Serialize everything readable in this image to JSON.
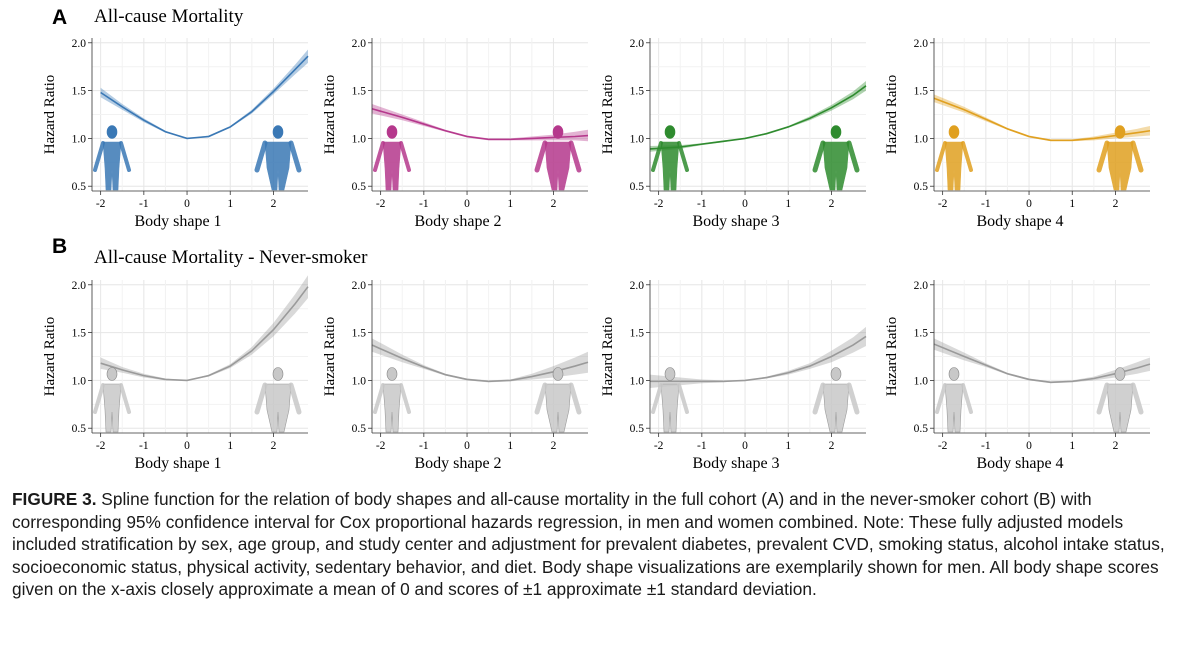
{
  "panels": [
    {
      "letter": "A",
      "title": "All-cause Mortality"
    },
    {
      "letter": "B",
      "title": "All-cause Mortality - Never-smoker"
    }
  ],
  "chart_data": [
    {
      "type": "line",
      "row": "A",
      "xlabel": "Body shape 1",
      "ylabel": "Hazard Ratio",
      "xlim": [
        -2.2,
        2.8
      ],
      "ylim": [
        0.45,
        2.05
      ],
      "x_ticks": [
        -2,
        -1,
        0,
        1,
        2
      ],
      "y_ticks": [
        0.5,
        1.0,
        1.5,
        2.0
      ],
      "x_tick_labels": [
        "-2",
        "-1",
        "0",
        "1",
        "2"
      ],
      "y_tick_labels": [
        "0.5",
        "1.0",
        "1.5",
        "2.0"
      ],
      "grid": true,
      "color": "#3a78b5",
      "band": "95% CI",
      "x": [
        -2.0,
        -1.5,
        -1.0,
        -0.5,
        0.0,
        0.5,
        1.0,
        1.5,
        2.0,
        2.5,
        2.8
      ],
      "y": [
        1.48,
        1.33,
        1.19,
        1.07,
        1.0,
        1.02,
        1.12,
        1.28,
        1.49,
        1.72,
        1.86
      ],
      "lower": [
        1.43,
        1.3,
        1.17,
        1.06,
        1.0,
        1.01,
        1.11,
        1.26,
        1.46,
        1.67,
        1.79
      ],
      "upper": [
        1.53,
        1.36,
        1.21,
        1.08,
        1.0,
        1.03,
        1.13,
        1.3,
        1.52,
        1.77,
        1.93
      ]
    },
    {
      "type": "line",
      "row": "A",
      "xlabel": "Body shape 2",
      "ylabel": "Hazard Ratio",
      "xlim": [
        -2.2,
        2.8
      ],
      "ylim": [
        0.45,
        2.05
      ],
      "x_ticks": [
        -2,
        -1,
        0,
        1,
        2
      ],
      "y_ticks": [
        0.5,
        1.0,
        1.5,
        2.0
      ],
      "x_tick_labels": [
        "-2",
        "-1",
        "0",
        "1",
        "2"
      ],
      "y_tick_labels": [
        "0.5",
        "1.0",
        "1.5",
        "2.0"
      ],
      "grid": true,
      "color": "#b5388c",
      "band": "95% CI",
      "x": [
        -2.2,
        -1.5,
        -1.0,
        -0.5,
        0.0,
        0.5,
        1.0,
        1.5,
        2.0,
        2.5,
        2.8
      ],
      "y": [
        1.31,
        1.22,
        1.15,
        1.08,
        1.02,
        0.99,
        0.99,
        1.0,
        1.01,
        1.02,
        1.03
      ],
      "lower": [
        1.26,
        1.19,
        1.13,
        1.07,
        1.01,
        0.98,
        0.98,
        0.98,
        0.98,
        0.98,
        0.97
      ],
      "upper": [
        1.36,
        1.25,
        1.17,
        1.09,
        1.03,
        1.0,
        1.0,
        1.02,
        1.04,
        1.07,
        1.09
      ]
    },
    {
      "type": "line",
      "row": "A",
      "xlabel": "Body shape 3",
      "ylabel": "Hazard Ratio",
      "xlim": [
        -2.2,
        2.8
      ],
      "ylim": [
        0.45,
        2.05
      ],
      "x_ticks": [
        -2,
        -1,
        0,
        1,
        2
      ],
      "y_ticks": [
        0.5,
        1.0,
        1.5,
        2.0
      ],
      "x_tick_labels": [
        "-2",
        "-1",
        "0",
        "1",
        "2"
      ],
      "y_tick_labels": [
        "0.5",
        "1.0",
        "1.5",
        "2.0"
      ],
      "grid": true,
      "color": "#2e8b2e",
      "band": "95% CI",
      "x": [
        -2.2,
        -1.5,
        -1.0,
        -0.5,
        0.0,
        0.5,
        1.0,
        1.5,
        2.0,
        2.5,
        2.8
      ],
      "y": [
        0.89,
        0.91,
        0.94,
        0.97,
        1.0,
        1.05,
        1.12,
        1.21,
        1.32,
        1.45,
        1.55
      ],
      "lower": [
        0.86,
        0.89,
        0.93,
        0.96,
        1.0,
        1.04,
        1.11,
        1.19,
        1.29,
        1.41,
        1.5
      ],
      "upper": [
        0.92,
        0.93,
        0.95,
        0.98,
        1.0,
        1.06,
        1.13,
        1.23,
        1.35,
        1.49,
        1.6
      ]
    },
    {
      "type": "line",
      "row": "A",
      "xlabel": "Body shape 4",
      "ylabel": "Hazard Ratio",
      "xlim": [
        -2.2,
        2.8
      ],
      "ylim": [
        0.45,
        2.05
      ],
      "x_ticks": [
        -2,
        -1,
        0,
        1,
        2
      ],
      "y_ticks": [
        0.5,
        1.0,
        1.5,
        2.0
      ],
      "x_tick_labels": [
        "-2",
        "-1",
        "0",
        "1",
        "2"
      ],
      "y_tick_labels": [
        "0.5",
        "1.0",
        "1.5",
        "2.0"
      ],
      "grid": true,
      "color": "#e0a020",
      "band": "95% CI",
      "x": [
        -2.2,
        -1.5,
        -1.0,
        -0.5,
        0.0,
        0.5,
        1.0,
        1.5,
        2.0,
        2.5,
        2.8
      ],
      "y": [
        1.42,
        1.3,
        1.2,
        1.1,
        1.02,
        0.98,
        0.98,
        1.0,
        1.03,
        1.06,
        1.08
      ],
      "lower": [
        1.38,
        1.27,
        1.18,
        1.09,
        1.01,
        0.97,
        0.97,
        0.98,
        1.0,
        1.02,
        1.03
      ],
      "upper": [
        1.46,
        1.33,
        1.22,
        1.11,
        1.03,
        0.99,
        0.99,
        1.02,
        1.06,
        1.1,
        1.13
      ]
    },
    {
      "type": "line",
      "row": "B",
      "xlabel": "Body shape 1",
      "ylabel": "Hazard Ratio",
      "xlim": [
        -2.2,
        2.8
      ],
      "ylim": [
        0.45,
        2.05
      ],
      "x_ticks": [
        -2,
        -1,
        0,
        1,
        2
      ],
      "y_ticks": [
        0.5,
        1.0,
        1.5,
        2.0
      ],
      "x_tick_labels": [
        "-2",
        "-1",
        "0",
        "1",
        "2"
      ],
      "y_tick_labels": [
        "0.5",
        "1.0",
        "1.5",
        "2.0"
      ],
      "grid": true,
      "color": "#9a9a9a",
      "band": "95% CI",
      "x": [
        -2.0,
        -1.5,
        -1.0,
        -0.5,
        0.0,
        0.5,
        1.0,
        1.5,
        2.0,
        2.5,
        2.8
      ],
      "y": [
        1.18,
        1.11,
        1.05,
        1.01,
        1.0,
        1.05,
        1.15,
        1.31,
        1.53,
        1.8,
        1.98
      ],
      "lower": [
        1.12,
        1.08,
        1.03,
        1.0,
        1.0,
        1.04,
        1.13,
        1.27,
        1.46,
        1.7,
        1.86
      ],
      "upper": [
        1.24,
        1.14,
        1.07,
        1.02,
        1.0,
        1.06,
        1.17,
        1.35,
        1.6,
        1.9,
        2.1
      ]
    },
    {
      "type": "line",
      "row": "B",
      "xlabel": "Body shape 2",
      "ylabel": "Hazard Ratio",
      "xlim": [
        -2.2,
        2.8
      ],
      "ylim": [
        0.45,
        2.05
      ],
      "x_ticks": [
        -2,
        -1,
        0,
        1,
        2
      ],
      "y_ticks": [
        0.5,
        1.0,
        1.5,
        2.0
      ],
      "x_tick_labels": [
        "-2",
        "-1",
        "0",
        "1",
        "2"
      ],
      "y_tick_labels": [
        "0.5",
        "1.0",
        "1.5",
        "2.0"
      ],
      "grid": true,
      "color": "#9a9a9a",
      "band": "95% CI",
      "x": [
        -2.2,
        -1.5,
        -1.0,
        -0.5,
        0.0,
        0.5,
        1.0,
        1.5,
        2.0,
        2.5,
        2.8
      ],
      "y": [
        1.37,
        1.23,
        1.14,
        1.06,
        1.01,
        0.99,
        1.0,
        1.04,
        1.09,
        1.15,
        1.19
      ],
      "lower": [
        1.3,
        1.19,
        1.12,
        1.05,
        1.0,
        0.98,
        0.99,
        1.01,
        1.03,
        1.06,
        1.08
      ],
      "upper": [
        1.44,
        1.27,
        1.16,
        1.07,
        1.02,
        1.0,
        1.01,
        1.07,
        1.15,
        1.24,
        1.3
      ]
    },
    {
      "type": "line",
      "row": "B",
      "xlabel": "Body shape 3",
      "ylabel": "Hazard Ratio",
      "xlim": [
        -2.2,
        2.8
      ],
      "ylim": [
        0.45,
        2.05
      ],
      "x_ticks": [
        -2,
        -1,
        0,
        1,
        2
      ],
      "y_ticks": [
        0.5,
        1.0,
        1.5,
        2.0
      ],
      "x_tick_labels": [
        "-2",
        "-1",
        "0",
        "1",
        "2"
      ],
      "y_tick_labels": [
        "0.5",
        "1.0",
        "1.5",
        "2.0"
      ],
      "grid": true,
      "color": "#9a9a9a",
      "band": "95% CI",
      "x": [
        -2.2,
        -1.5,
        -1.0,
        -0.5,
        0.0,
        0.5,
        1.0,
        1.5,
        2.0,
        2.5,
        2.8
      ],
      "y": [
        0.99,
        0.99,
        0.99,
        0.99,
        1.0,
        1.03,
        1.08,
        1.15,
        1.25,
        1.37,
        1.46
      ],
      "lower": [
        0.92,
        0.95,
        0.97,
        0.98,
        1.0,
        1.02,
        1.06,
        1.12,
        1.19,
        1.29,
        1.36
      ],
      "upper": [
        1.06,
        1.03,
        1.01,
        1.0,
        1.0,
        1.04,
        1.1,
        1.18,
        1.31,
        1.45,
        1.56
      ]
    },
    {
      "type": "line",
      "row": "B",
      "xlabel": "Body shape 4",
      "ylabel": "Hazard Ratio",
      "xlim": [
        -2.2,
        2.8
      ],
      "ylim": [
        0.45,
        2.05
      ],
      "x_ticks": [
        -2,
        -1,
        0,
        1,
        2
      ],
      "y_ticks": [
        0.5,
        1.0,
        1.5,
        2.0
      ],
      "x_tick_labels": [
        "-2",
        "-1",
        "0",
        "1",
        "2"
      ],
      "y_tick_labels": [
        "0.5",
        "1.0",
        "1.5",
        "2.0"
      ],
      "grid": true,
      "color": "#9a9a9a",
      "band": "95% CI",
      "x": [
        -2.2,
        -1.5,
        -1.0,
        -0.5,
        0.0,
        0.5,
        1.0,
        1.5,
        2.0,
        2.5,
        2.8
      ],
      "y": [
        1.38,
        1.25,
        1.16,
        1.07,
        1.01,
        0.98,
        0.99,
        1.02,
        1.07,
        1.13,
        1.17
      ],
      "lower": [
        1.32,
        1.21,
        1.14,
        1.06,
        1.0,
        0.97,
        0.98,
        1.0,
        1.03,
        1.07,
        1.1
      ],
      "upper": [
        1.44,
        1.29,
        1.18,
        1.08,
        1.02,
        0.99,
        1.0,
        1.04,
        1.11,
        1.19,
        1.24
      ]
    }
  ],
  "caption": {
    "label": "FIGURE 3.",
    "text": " Spline function for the relation of body shapes and all-cause mortality in the full cohort (A) and in the never-smoker cohort (B) with corresponding 95% confidence interval for Cox proportional hazards regression, in men and women combined. Note: These fully adjusted models included stratification by sex, age group, and study center and adjustment for prevalent diabetes, prevalent CVD, smoking status, alcohol intake status, socioeconomic status, physical activity, sedentary behavior, and diet. Body shape visualizations are exemplarily shown for men. All body shape scores given on the x-axis closely approximate a mean of 0 and scores of ±1 approximate ±1 standard deviation."
  }
}
